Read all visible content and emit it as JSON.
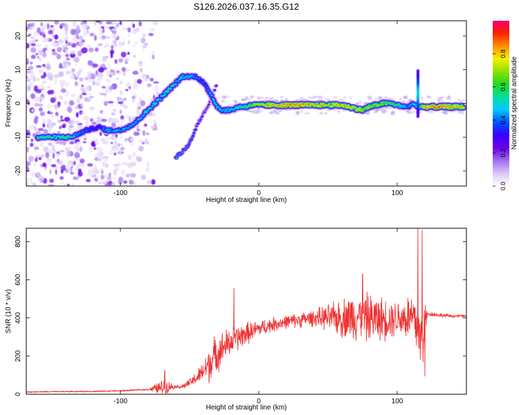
{
  "figure_title": "S126.2026.037.16.35.G12",
  "colors": {
    "snr_line": "#ee3333",
    "background": "#ffffff",
    "axis": "#000000"
  },
  "chart_data": [
    {
      "type": "heatmap",
      "xlabel": "Height of straight line (km)",
      "ylabel": "Frequency (Hz)",
      "xlim": [
        -168,
        150
      ],
      "ylim": [
        -24.5,
        24.5
      ],
      "xticks": [
        -100,
        0,
        100
      ],
      "yticks": [
        -20,
        -10,
        0,
        10,
        20
      ],
      "colorbar": {
        "label": "Normalized spectral amplitude",
        "range": [
          0,
          1
        ],
        "ticks": [
          "0.0",
          "0.2",
          "0.4",
          "0.6",
          "0.8"
        ],
        "colormap": [
          "#ffffff",
          "#d9c8f5",
          "#a070f0",
          "#6a00e8",
          "#3a00ff",
          "#0050ff",
          "#00c8ff",
          "#00e0a0",
          "#20d820",
          "#90e000",
          "#f0f000",
          "#ff9000",
          "#ff2000",
          "#f00070"
        ]
      },
      "trace": {
        "x": [
          -160,
          -150,
          -140,
          -135,
          -125,
          -115,
          -110,
          -100,
          -95,
          -90,
          -85,
          -80,
          -75,
          -70,
          -65,
          -60,
          -55,
          -50,
          -45,
          -40,
          -35,
          -30,
          -27,
          -25,
          -20,
          -15,
          -10,
          -5,
          0,
          10,
          20,
          30,
          40,
          50,
          60,
          70,
          75,
          80,
          85,
          90,
          95,
          100,
          105,
          108,
          112,
          115,
          120,
          130,
          140,
          148
        ],
        "y": [
          -10,
          -10,
          -10,
          -10,
          -8,
          -7,
          -8,
          -8,
          -7,
          -6,
          -4,
          -2,
          0,
          2,
          4,
          6,
          8,
          8,
          8,
          6,
          3,
          -1,
          -2,
          -2,
          -2,
          -1,
          -1,
          -0.5,
          -0.5,
          -0.5,
          -0.5,
          -0.5,
          -0.5,
          -0.5,
          -0.5,
          -1.5,
          -2,
          -1,
          -0.5,
          0,
          0,
          -0.5,
          -1,
          -1,
          0,
          -1,
          -1,
          -1,
          -1,
          -1
        ],
        "amplitude": [
          0.6,
          0.55,
          0.6,
          0.5,
          0.4,
          0.35,
          0.5,
          0.45,
          0.5,
          0.5,
          0.5,
          0.55,
          0.55,
          0.55,
          0.6,
          0.5,
          0.5,
          0.5,
          0.45,
          0.4,
          0.5,
          0.55,
          0.5,
          0.5,
          0.5,
          0.55,
          0.6,
          0.7,
          0.75,
          0.85,
          0.9,
          0.9,
          0.85,
          0.8,
          0.85,
          0.8,
          0.75,
          0.7,
          0.7,
          0.7,
          0.65,
          0.6,
          0.5,
          0.45,
          0.5,
          0.6,
          0.85,
          0.9,
          0.85,
          0.8
        ]
      },
      "branch": {
        "x": [
          -60,
          -57,
          -52,
          -48,
          -44,
          -40,
          -36,
          -33,
          -30
        ],
        "y": [
          -16,
          -15,
          -13,
          -10,
          -6,
          -3,
          0,
          3,
          6
        ],
        "amplitude": [
          0.5,
          0.45,
          0.4,
          0.35,
          0.3,
          0.25,
          0.25,
          0.25,
          0.25
        ]
      },
      "noise_region": {
        "x_range": [
          -168,
          -80
        ],
        "y_range": [
          -24.5,
          24.5
        ]
      },
      "spike": {
        "x": 115,
        "y_range": [
          -4,
          10
        ]
      }
    },
    {
      "type": "line",
      "xlabel": "Height of straight line (km)",
      "ylabel": "SNR (10 * v/v)",
      "xlim": [
        -168,
        150
      ],
      "ylim": [
        0,
        870
      ],
      "xticks": [
        -100,
        0,
        100
      ],
      "yticks": [
        0,
        200,
        400,
        600,
        800
      ],
      "envelope": {
        "x": [
          -168,
          -140,
          -120,
          -100,
          -80,
          -65,
          -60,
          -55,
          -50,
          -45,
          -40,
          -35,
          -30,
          -25,
          -20,
          -15,
          -10,
          -5,
          0,
          10,
          20,
          30,
          40,
          45,
          50,
          60,
          70,
          80,
          90,
          100,
          110,
          112,
          115,
          118,
          120,
          122,
          125,
          130,
          140,
          150
        ],
        "y": [
          12,
          14,
          15,
          18,
          25,
          40,
          40,
          40,
          60,
          85,
          120,
          170,
          215,
          250,
          275,
          295,
          315,
          330,
          345,
          365,
          380,
          390,
          400,
          400,
          400,
          400,
          410,
          400,
          395,
          400,
          400,
          390,
          330,
          260,
          380,
          420,
          420,
          415,
          410,
          410
        ]
      },
      "noise_amplitude": {
        "x": [
          -168,
          -80,
          -72,
          -68,
          -60,
          -50,
          -40,
          -35,
          -30,
          -20,
          -10,
          0,
          20,
          40,
          50,
          60,
          70,
          80,
          90,
          100,
          105,
          110,
          115,
          118,
          120,
          122,
          150
        ],
        "y": [
          4,
          5,
          40,
          50,
          8,
          25,
          60,
          130,
          110,
          90,
          70,
          50,
          40,
          50,
          80,
          120,
          150,
          150,
          130,
          110,
          130,
          170,
          180,
          220,
          140,
          15,
          8
        ]
      },
      "peaks": [
        {
          "x": -68,
          "y": 125
        },
        {
          "x": -18,
          "y": 555
        },
        {
          "x": 75,
          "y": 630
        },
        {
          "x": 115,
          "y": 870
        },
        {
          "x": 118,
          "y": 860
        },
        {
          "x": 120,
          "y": 95
        }
      ]
    }
  ]
}
